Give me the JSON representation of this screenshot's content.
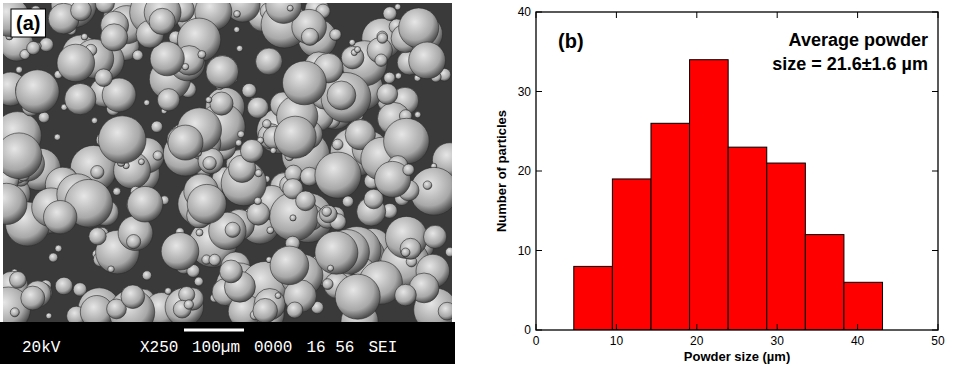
{
  "micrograph": {
    "label": "(a)",
    "info": {
      "voltage": "20kV",
      "magnification": "X250",
      "scale_bar": "100µm",
      "fields": [
        "0000",
        "16 56",
        "SEI"
      ]
    }
  },
  "chart_data": {
    "type": "histogram",
    "label": "(b)",
    "annotation": "Average powder size = 21.6±1.6 µm",
    "x_label": "Powder size (µm)",
    "y_label": "Number of particles",
    "bins": [
      4.7,
      9.5,
      14.3,
      19.1,
      23.9,
      28.7,
      33.5,
      38.3,
      43.1
    ],
    "values": [
      8,
      19,
      26,
      34,
      23,
      21,
      12,
      6
    ],
    "color": "#ff0000",
    "xlim": [
      0,
      50
    ],
    "xticks": [
      0,
      10,
      20,
      30,
      40,
      50
    ],
    "ylim": [
      0,
      40
    ],
    "yticks": [
      0,
      10,
      20,
      30,
      40
    ],
    "grid": false
  }
}
